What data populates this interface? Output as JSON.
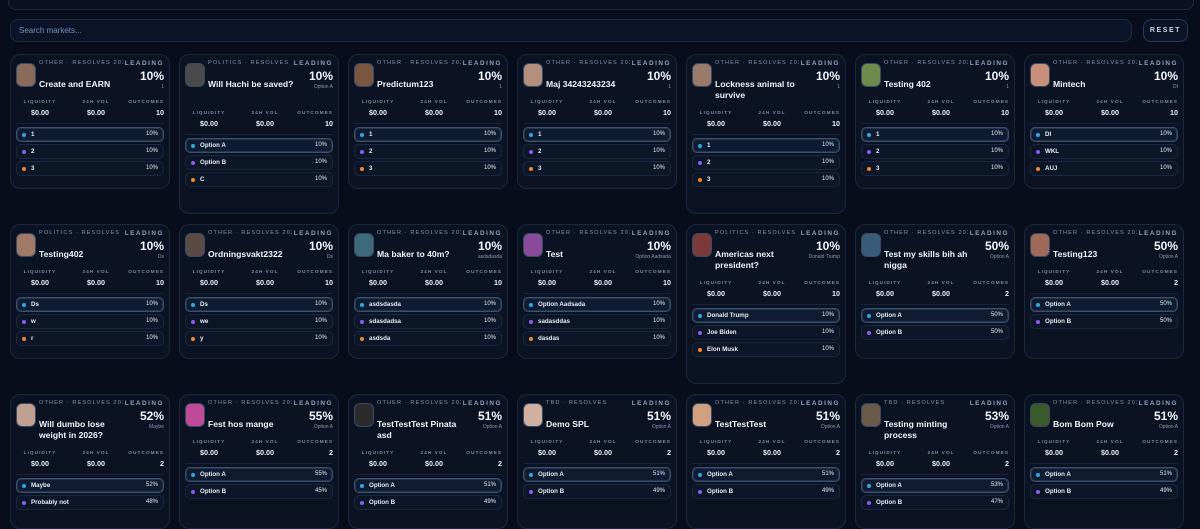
{
  "search": {
    "placeholder": "Search markets..."
  },
  "reset_label": "RESET",
  "labels": {
    "leading": "LEADING",
    "liquidity": "LIQUIDITY",
    "vol24": "24H VOL",
    "outcomes": "OUTCOMES"
  },
  "colors": {
    "dot_blue": "#2ea8e6",
    "dot_purple": "#8b5cf6",
    "dot_orange": "#f5872a"
  },
  "markets": [
    {
      "meta": "OTHER · RESOLVES 2026-02-22",
      "title": "Create and EARN",
      "leading_pct": "10%",
      "leading_name": "1",
      "liquidity": "$0.00",
      "vol": "$0.00",
      "outcomes": "10",
      "avatar_color": "#8a6b5a",
      "options": [
        {
          "label": "1",
          "pct": "10%"
        },
        {
          "label": "2",
          "pct": "10%"
        },
        {
          "label": "3",
          "pct": "10%"
        }
      ]
    },
    {
      "meta": "POLITICS · RESOLVES 2026-01-28",
      "title": "Will Hachi be saved?",
      "leading_pct": "10%",
      "leading_name": "Option A",
      "liquidity": "$0.00",
      "vol": "$0.00",
      "outcomes": "10",
      "avatar_color": "#4a4a4a",
      "options": [
        {
          "label": "Option A",
          "pct": "10%"
        },
        {
          "label": "Option B",
          "pct": "10%"
        },
        {
          "label": "C",
          "pct": "10%"
        }
      ]
    },
    {
      "meta": "OTHER · RESOLVES 2026-03-01",
      "title": "Predictum123",
      "leading_pct": "10%",
      "leading_name": "1",
      "liquidity": "$0.00",
      "vol": "$0.00",
      "outcomes": "10",
      "avatar_color": "#7a5540",
      "options": [
        {
          "label": "1",
          "pct": "10%"
        },
        {
          "label": "2",
          "pct": "10%"
        },
        {
          "label": "3",
          "pct": "10%"
        }
      ]
    },
    {
      "meta": "OTHER · RESOLVES 2026-02-28",
      "title": "Maj 34243243234",
      "leading_pct": "10%",
      "leading_name": "1",
      "liquidity": "$0.00",
      "vol": "$0.00",
      "outcomes": "10",
      "avatar_color": "#b48f7e",
      "options": [
        {
          "label": "1",
          "pct": "10%"
        },
        {
          "label": "2",
          "pct": "10%"
        },
        {
          "label": "3",
          "pct": "10%"
        }
      ]
    },
    {
      "meta": "OTHER · RESOLVES 2026-02-27",
      "title": "Lockness animal to survive",
      "leading_pct": "10%",
      "leading_name": "1",
      "liquidity": "$0.00",
      "vol": "$0.00",
      "outcomes": "10",
      "avatar_color": "#9a7a6a",
      "options": [
        {
          "label": "1",
          "pct": "10%"
        },
        {
          "label": "2",
          "pct": "10%"
        },
        {
          "label": "3",
          "pct": "10%"
        }
      ]
    },
    {
      "meta": "OTHER · RESOLVES 2026-02-27",
      "title": "Testing 402",
      "leading_pct": "10%",
      "leading_name": "1",
      "liquidity": "$0.00",
      "vol": "$0.00",
      "outcomes": "10",
      "avatar_color": "#6e8b4e",
      "options": [
        {
          "label": "1",
          "pct": "10%"
        },
        {
          "label": "2",
          "pct": "10%"
        },
        {
          "label": "3",
          "pct": "10%"
        }
      ]
    },
    {
      "meta": "OTHER · RESOLVES 2026-02-28",
      "title": "Mintech",
      "leading_pct": "10%",
      "leading_name": "DI",
      "liquidity": "$0.00",
      "vol": "$0.00",
      "outcomes": "10",
      "avatar_color": "#c98f7a",
      "options": [
        {
          "label": "DI",
          "pct": "10%"
        },
        {
          "label": "WKL",
          "pct": "10%"
        },
        {
          "label": "AUJ",
          "pct": "10%"
        }
      ]
    },
    {
      "meta": "POLITICS · RESOLVES 2026-03-08",
      "title": "Testing402",
      "leading_pct": "10%",
      "leading_name": "Ds",
      "liquidity": "$0.00",
      "vol": "$0.00",
      "outcomes": "10",
      "avatar_color": "#a07a66",
      "options": [
        {
          "label": "Ds",
          "pct": "10%"
        },
        {
          "label": "w",
          "pct": "10%"
        },
        {
          "label": "r",
          "pct": "10%"
        }
      ]
    },
    {
      "meta": "OTHER · RESOLVES 2026-02-14",
      "title": "Ordningsvakt2322",
      "leading_pct": "10%",
      "leading_name": "Ds",
      "liquidity": "$0.00",
      "vol": "$0.00",
      "outcomes": "10",
      "avatar_color": "#5a4a44",
      "options": [
        {
          "label": "Ds",
          "pct": "10%"
        },
        {
          "label": "we",
          "pct": "10%"
        },
        {
          "label": "y",
          "pct": "10%"
        }
      ]
    },
    {
      "meta": "OTHER · RESOLVES 2026-01-31",
      "title": "Ma baker to 40m?",
      "leading_pct": "10%",
      "leading_name": "asdsdasda",
      "liquidity": "$0.00",
      "vol": "$0.00",
      "outcomes": "10",
      "avatar_color": "#3d6a7a",
      "options": [
        {
          "label": "asdsdasda",
          "pct": "10%"
        },
        {
          "label": "sdasdadsa",
          "pct": "10%"
        },
        {
          "label": "asdsda",
          "pct": "10%"
        }
      ]
    },
    {
      "meta": "OTHER · RESOLVES 2026-02-13",
      "title": "Test",
      "leading_pct": "10%",
      "leading_name": "Option Aadsada",
      "liquidity": "$0.00",
      "vol": "$0.00",
      "outcomes": "10",
      "avatar_color": "#8a4a9a",
      "options": [
        {
          "label": "Option Aadsada",
          "pct": "10%"
        },
        {
          "label": "sadasddas",
          "pct": "10%"
        },
        {
          "label": "dasdas",
          "pct": "10%"
        }
      ]
    },
    {
      "meta": "POLITICS · RESOLVES 2026-03-01",
      "title": "Americas next president?",
      "leading_pct": "10%",
      "leading_name": "Donald Trump",
      "liquidity": "$0.00",
      "vol": "$0.00",
      "outcomes": "10",
      "avatar_color": "#7a3a3a",
      "options": [
        {
          "label": "Donald Trump",
          "pct": "10%"
        },
        {
          "label": "Joe Biden",
          "pct": "10%"
        },
        {
          "label": "Elon Musk",
          "pct": "10%"
        }
      ]
    },
    {
      "meta": "OTHER · RESOLVES 2026-01-31",
      "title": "Test my skills bih ah nigga",
      "leading_pct": "50%",
      "leading_name": "Option A",
      "liquidity": "$0.00",
      "vol": "$0.00",
      "outcomes": "2",
      "avatar_color": "#3a5a7a",
      "options": [
        {
          "label": "Option A",
          "pct": "50%"
        },
        {
          "label": "Option B",
          "pct": "50%"
        }
      ]
    },
    {
      "meta": "OTHER · RESOLVES 2026-02-28",
      "title": "Testing123",
      "leading_pct": "50%",
      "leading_name": "Option A",
      "liquidity": "$0.00",
      "vol": "$0.00",
      "outcomes": "2",
      "avatar_color": "#a06a5a",
      "options": [
        {
          "label": "Option A",
          "pct": "50%"
        },
        {
          "label": "Option B",
          "pct": "50%"
        }
      ]
    },
    {
      "meta": "OTHER · RESOLVES 2026-02-15",
      "title": "Will dumbo lose weight in 2026?",
      "leading_pct": "52%",
      "leading_name": "Maybe",
      "liquidity": "$0.00",
      "vol": "$0.00",
      "outcomes": "2",
      "avatar_color": "#c0a090",
      "options": [
        {
          "label": "Maybe",
          "pct": "52%"
        },
        {
          "label": "Probably not",
          "pct": "48%"
        }
      ]
    },
    {
      "meta": "OTHER · RESOLVES 2026-02-14",
      "title": "Fest hos mange",
      "leading_pct": "55%",
      "leading_name": "Option A",
      "liquidity": "$0.00",
      "vol": "$0.00",
      "outcomes": "2",
      "avatar_color": "#c04a9a",
      "options": [
        {
          "label": "Option A",
          "pct": "55%"
        },
        {
          "label": "Option B",
          "pct": "45%"
        }
      ]
    },
    {
      "meta": "OTHER · RESOLVES 2026-02-13",
      "title": "TestTestTest Pinata asd",
      "leading_pct": "51%",
      "leading_name": "Option A",
      "liquidity": "$0.00",
      "vol": "$0.00",
      "outcomes": "2",
      "avatar_color": "#2a2a2a",
      "options": [
        {
          "label": "Option A",
          "pct": "51%"
        },
        {
          "label": "Option B",
          "pct": "49%"
        }
      ]
    },
    {
      "meta": "TBD · RESOLVES",
      "title": "Demo SPL",
      "leading_pct": "51%",
      "leading_name": "Option A",
      "liquidity": "$0.00",
      "vol": "$0.00",
      "outcomes": "2",
      "avatar_color": "#d0b0a0",
      "options": [
        {
          "label": "Option A",
          "pct": "51%"
        },
        {
          "label": "Option B",
          "pct": "49%"
        }
      ]
    },
    {
      "meta": "OTHER · RESOLVES 2026-02-06",
      "title": "TestTestTest",
      "leading_pct": "51%",
      "leading_name": "Option A",
      "liquidity": "$0.00",
      "vol": "$0.00",
      "outcomes": "2",
      "avatar_color": "#d0a080",
      "options": [
        {
          "label": "Option A",
          "pct": "51%"
        },
        {
          "label": "Option B",
          "pct": "49%"
        }
      ]
    },
    {
      "meta": "TBD · RESOLVES",
      "title": "Testing minting process",
      "leading_pct": "53%",
      "leading_name": "Option A",
      "liquidity": "$0.00",
      "vol": "$0.00",
      "outcomes": "2",
      "avatar_color": "#6a5a4a",
      "options": [
        {
          "label": "Option A",
          "pct": "53%"
        },
        {
          "label": "Option B",
          "pct": "47%"
        }
      ]
    },
    {
      "meta": "OTHER · RESOLVES 2026-01-31",
      "title": "Bom Bom Pow",
      "leading_pct": "51%",
      "leading_name": "Option A",
      "liquidity": "$0.00",
      "vol": "$0.00",
      "outcomes": "2",
      "avatar_color": "#3a5a2a",
      "options": [
        {
          "label": "Option A",
          "pct": "51%"
        },
        {
          "label": "Option B",
          "pct": "49%"
        }
      ]
    }
  ]
}
